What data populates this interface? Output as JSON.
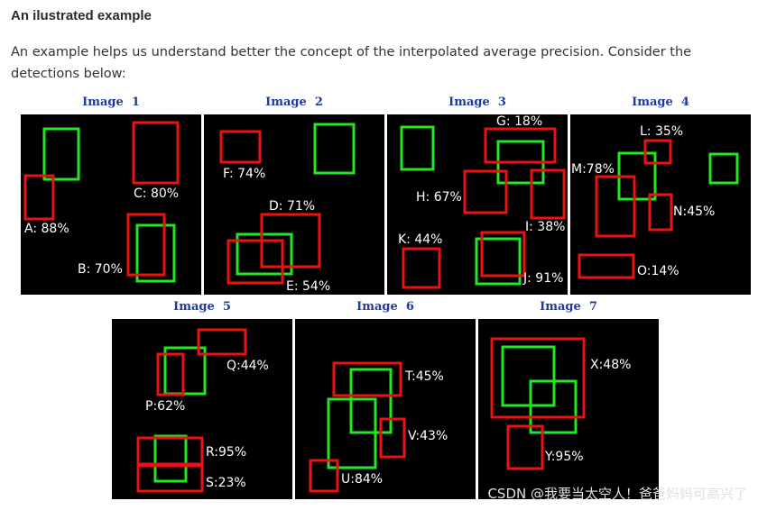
{
  "heading": "An ilustrated example",
  "intro": "An example helps us understand better the concept of the interpolated average precision. Consider the detections below:",
  "colors": {
    "ground_truth": "#22e622",
    "detection": "#ee1111",
    "background": "#000000",
    "title": "#1f3a9e"
  },
  "panels": [
    {
      "title": "Image  1",
      "labels": [
        "A: 88%",
        "B: 70%",
        "C: 80%"
      ]
    },
    {
      "title": "Image  2",
      "labels": [
        "F: 74%",
        "D: 71%",
        "E: 54%"
      ]
    },
    {
      "title": "Image  3",
      "labels": [
        "G: 18%",
        "H: 67%",
        "I: 38%",
        "K: 44%",
        "J: 91%"
      ]
    },
    {
      "title": "Image  4",
      "labels": [
        "L: 35%",
        "M:78%",
        "N:45%",
        "O:14%"
      ]
    },
    {
      "title": "Image  5",
      "labels": [
        "Q:44%",
        "P:62%",
        "R:95%",
        "S:23%"
      ]
    },
    {
      "title": "Image  6",
      "labels": [
        "T:45%",
        "V:43%",
        "U:84%"
      ]
    },
    {
      "title": "Image  7",
      "labels": [
        "X:48%",
        "Y:95%"
      ]
    }
  ],
  "watermark": "CSDN @我要当太空人！爸爸妈妈可高兴了"
}
